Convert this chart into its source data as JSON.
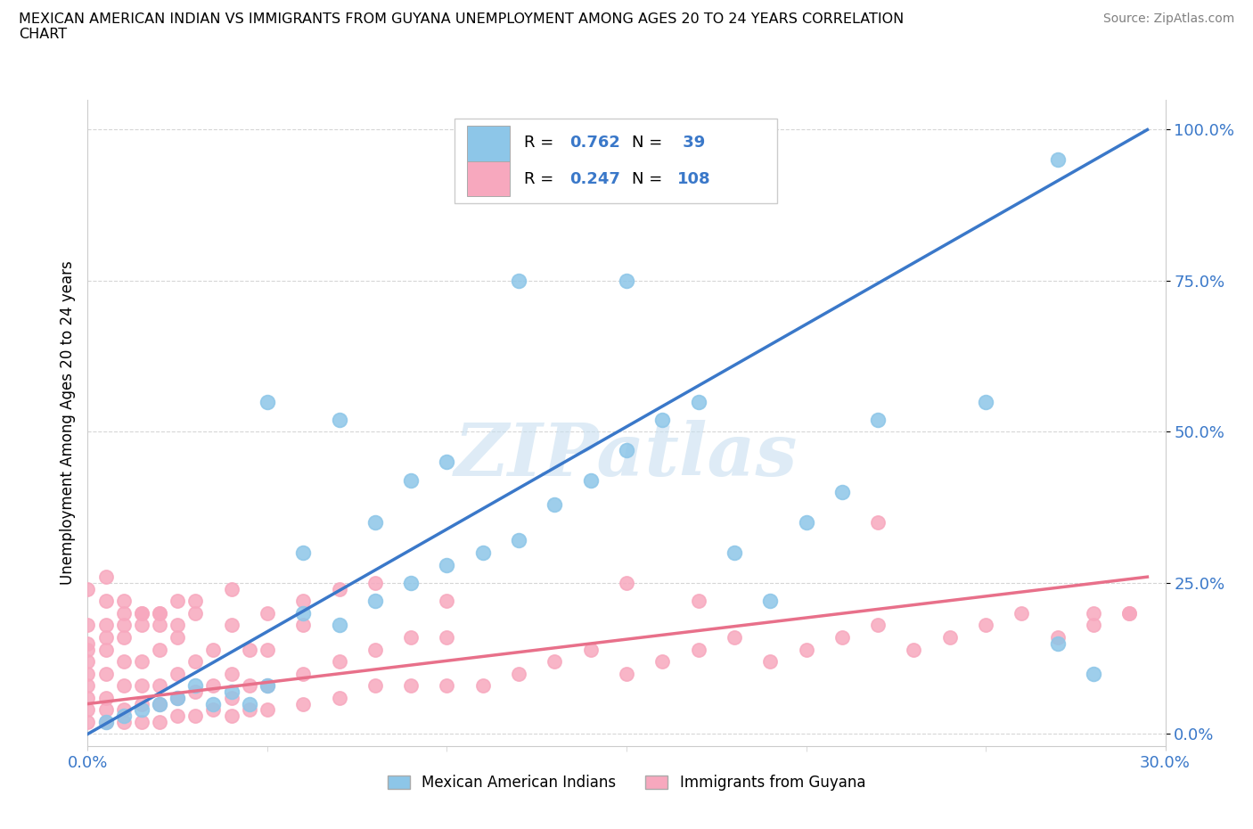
{
  "title_line1": "MEXICAN AMERICAN INDIAN VS IMMIGRANTS FROM GUYANA UNEMPLOYMENT AMONG AGES 20 TO 24 YEARS CORRELATION",
  "title_line2": "CHART",
  "source_text": "Source: ZipAtlas.com",
  "ylabel": "Unemployment Among Ages 20 to 24 years",
  "xlim": [
    0.0,
    0.3
  ],
  "ylim": [
    -0.02,
    1.05
  ],
  "ytick_labels": [
    "0.0%",
    "25.0%",
    "50.0%",
    "75.0%",
    "100.0%"
  ],
  "ytick_values": [
    0.0,
    0.25,
    0.5,
    0.75,
    1.0
  ],
  "watermark": "ZIPatlas",
  "blue_color": "#8dc6e8",
  "pink_color": "#f7a8be",
  "blue_line_color": "#3a78c9",
  "pink_line_color": "#e8708a",
  "blue_scatter_x": [
    0.005,
    0.01,
    0.015,
    0.02,
    0.025,
    0.03,
    0.035,
    0.04,
    0.045,
    0.05,
    0.06,
    0.07,
    0.08,
    0.09,
    0.1,
    0.11,
    0.12,
    0.13,
    0.14,
    0.15,
    0.16,
    0.17,
    0.18,
    0.19,
    0.2,
    0.21,
    0.22,
    0.25,
    0.27,
    0.28,
    0.05,
    0.06,
    0.07,
    0.08,
    0.09,
    0.1,
    0.12,
    0.15,
    0.27
  ],
  "blue_scatter_y": [
    0.02,
    0.03,
    0.04,
    0.05,
    0.06,
    0.08,
    0.05,
    0.07,
    0.05,
    0.08,
    0.2,
    0.18,
    0.22,
    0.25,
    0.28,
    0.3,
    0.32,
    0.38,
    0.42,
    0.47,
    0.52,
    0.55,
    0.3,
    0.22,
    0.35,
    0.4,
    0.52,
    0.55,
    0.15,
    0.1,
    0.55,
    0.3,
    0.52,
    0.35,
    0.42,
    0.45,
    0.75,
    0.75,
    0.95
  ],
  "pink_scatter_x": [
    0.0,
    0.0,
    0.0,
    0.0,
    0.0,
    0.0,
    0.0,
    0.0,
    0.005,
    0.005,
    0.005,
    0.005,
    0.005,
    0.005,
    0.005,
    0.01,
    0.01,
    0.01,
    0.01,
    0.01,
    0.01,
    0.015,
    0.015,
    0.015,
    0.015,
    0.015,
    0.02,
    0.02,
    0.02,
    0.02,
    0.02,
    0.025,
    0.025,
    0.025,
    0.025,
    0.03,
    0.03,
    0.03,
    0.03,
    0.035,
    0.035,
    0.035,
    0.04,
    0.04,
    0.04,
    0.04,
    0.045,
    0.045,
    0.045,
    0.05,
    0.05,
    0.05,
    0.06,
    0.06,
    0.06,
    0.07,
    0.07,
    0.08,
    0.08,
    0.09,
    0.09,
    0.1,
    0.1,
    0.11,
    0.12,
    0.13,
    0.14,
    0.15,
    0.16,
    0.17,
    0.18,
    0.19,
    0.2,
    0.21,
    0.22,
    0.23,
    0.24,
    0.25,
    0.26,
    0.27,
    0.28,
    0.29,
    0.22,
    0.28,
    0.29,
    0.15,
    0.17,
    0.08,
    0.1,
    0.05,
    0.06,
    0.07,
    0.03,
    0.04,
    0.02,
    0.025,
    0.01,
    0.015,
    0.005,
    0.0,
    0.0,
    0.005,
    0.01,
    0.015,
    0.02,
    0.025
  ],
  "pink_scatter_y": [
    0.02,
    0.04,
    0.06,
    0.08,
    0.1,
    0.12,
    0.15,
    0.18,
    0.02,
    0.04,
    0.06,
    0.1,
    0.14,
    0.18,
    0.22,
    0.02,
    0.04,
    0.08,
    0.12,
    0.16,
    0.2,
    0.02,
    0.05,
    0.08,
    0.12,
    0.18,
    0.02,
    0.05,
    0.08,
    0.14,
    0.2,
    0.03,
    0.06,
    0.1,
    0.18,
    0.03,
    0.07,
    0.12,
    0.2,
    0.04,
    0.08,
    0.14,
    0.03,
    0.06,
    0.1,
    0.18,
    0.04,
    0.08,
    0.14,
    0.04,
    0.08,
    0.14,
    0.05,
    0.1,
    0.18,
    0.06,
    0.12,
    0.08,
    0.14,
    0.08,
    0.16,
    0.08,
    0.16,
    0.08,
    0.1,
    0.12,
    0.14,
    0.1,
    0.12,
    0.14,
    0.16,
    0.12,
    0.14,
    0.16,
    0.18,
    0.14,
    0.16,
    0.18,
    0.2,
    0.16,
    0.18,
    0.2,
    0.35,
    0.2,
    0.2,
    0.25,
    0.22,
    0.25,
    0.22,
    0.2,
    0.22,
    0.24,
    0.22,
    0.24,
    0.2,
    0.22,
    0.18,
    0.2,
    0.16,
    0.14,
    0.24,
    0.26,
    0.22,
    0.2,
    0.18,
    0.16
  ],
  "blue_trend_x": [
    0.0,
    0.295
  ],
  "blue_trend_y": [
    0.0,
    1.0
  ],
  "pink_trend_x": [
    0.0,
    0.295
  ],
  "pink_trend_y": [
    0.05,
    0.26
  ]
}
